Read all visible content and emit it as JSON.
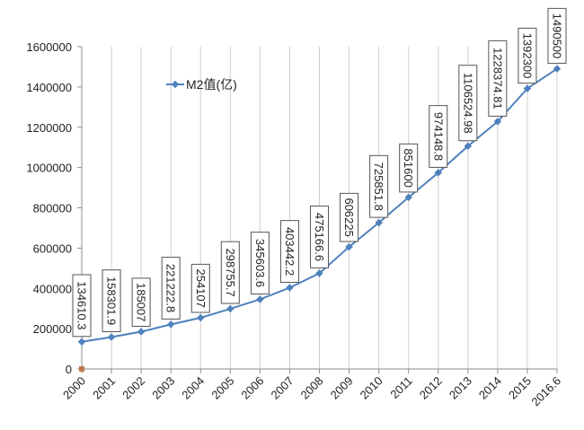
{
  "chart_data": {
    "type": "line",
    "title": "",
    "xlabel": "",
    "ylabel": "",
    "categories": [
      "2000",
      "2001",
      "2002",
      "2003",
      "2004",
      "2005",
      "2006",
      "2007",
      "2008",
      "2009",
      "2010",
      "2011",
      "2012",
      "2013",
      "2014",
      "2015",
      "2016.6"
    ],
    "series": [
      {
        "name": "M2值(亿)",
        "color": "#4f81bd",
        "values": [
          134610.3,
          158301.9,
          185007,
          221222.8,
          254107,
          298755.7,
          345603.6,
          403442.2,
          475166.6,
          606225,
          725851.8,
          851600,
          974148.8,
          1106524.98,
          1228374.81,
          1392300,
          1490500
        ],
        "labels": [
          "134610.3",
          "158301.9",
          "185007",
          "221222.8",
          "254107",
          "298755.7",
          "345603.6",
          "403442.2",
          "475166.6",
          "606225",
          "725851.8",
          "851600",
          "974148.8",
          "1106524.98",
          "1228374.81",
          "1392300",
          "1490500"
        ]
      }
    ],
    "y_ticks": [
      "0",
      "200000",
      "400000",
      "600000",
      "800000",
      "1000000",
      "1200000",
      "1400000",
      "1600000"
    ],
    "ylim": [
      0,
      1600000
    ],
    "grid": "vertical",
    "legend": "top-left"
  }
}
